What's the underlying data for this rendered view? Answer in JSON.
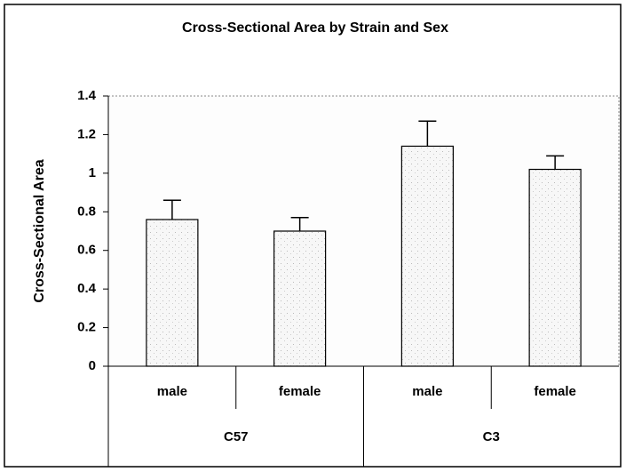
{
  "chart_data": {
    "type": "bar",
    "title": "Cross-Sectional Area by Strain and Sex",
    "y_label": "Cross-Sectional Area",
    "categories": [
      "male",
      "female",
      "male",
      "female"
    ],
    "groups": [
      "C57",
      "C3"
    ],
    "values": [
      0.76,
      0.7,
      1.14,
      1.02
    ],
    "errors": [
      0.1,
      0.07,
      0.13,
      0.07
    ],
    "color": "#f2f2f2",
    "ylim": [
      0,
      1.4
    ],
    "yticks": [
      0,
      {
        "value": 0.2,
        "label": "0.2"
      },
      {
        "value": 0.4,
        "label": "0.4"
      },
      {
        "value": 0.6,
        "label": "0.6"
      },
      {
        "value": 0.8,
        "label": "0.8"
      },
      1,
      {
        "value": 1.2,
        "label": "1.2"
      },
      {
        "value": 1.4,
        "label": "1.4"
      }
    ]
  }
}
